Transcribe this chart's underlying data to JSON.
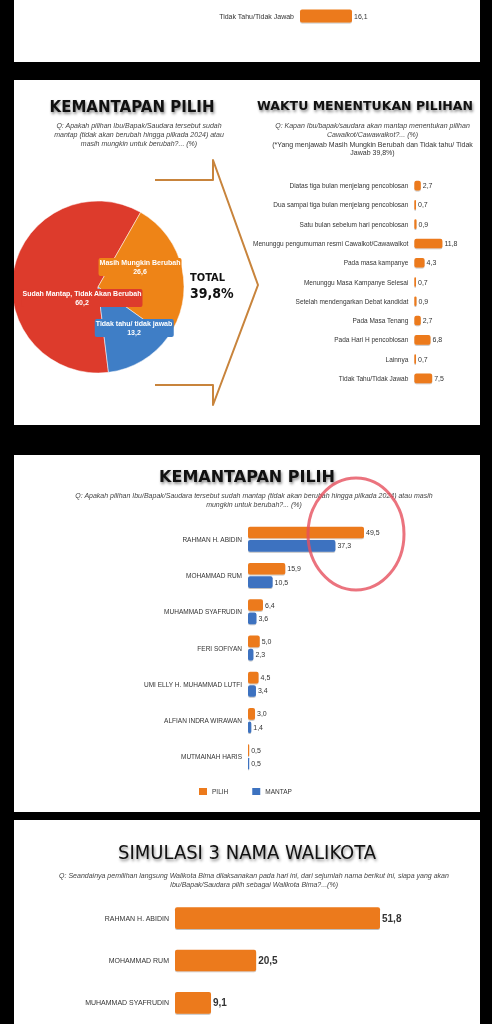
{
  "chart_data": [
    {
      "type": "bar",
      "orientation": "horizontal",
      "categories": [
        "Tidak Tahu/Tidak Jawab"
      ],
      "values": [
        16.1
      ],
      "color": "#ec7a1c",
      "value_labels": [
        "16,1"
      ]
    },
    {
      "type": "pie",
      "title": "KEMANTAPAN PILIH",
      "subtitle": "Q: Apakah pilihan Ibu/Bapak/Saudara tersebut sudah mantap (tidak akan berubah hingga pilkada 2024) atau masih mungkin untuk berubah?... (%)",
      "categories": [
        "Sudah Mantap, Tidak Akan Berubah",
        "Masih Mungkin Berubah",
        "Tidak tahu/ tidak jawab"
      ],
      "values": [
        60.2,
        26.6,
        13.2
      ],
      "colors": [
        "#dd3b2c",
        "#ee8417",
        "#3f7ec6"
      ],
      "value_labels": [
        "60,2",
        "26,6",
        "13,2"
      ],
      "annotations": [
        "TOTAL",
        "39,8%"
      ]
    },
    {
      "type": "bar",
      "orientation": "horizontal",
      "title": "WAKTU MENENTUKAN PILIHAN",
      "subtitle": "Q: Kapan Ibu/bapak/saudara akan mantap menentukan pilihan Cawalkot/Cawawalkot?... (%)",
      "annotations": [
        "(*Yang menjawab Masih Mungkin Berubah dan Tidak tahu/ Tidak Jawab 39,8%)"
      ],
      "categories": [
        "Diatas tiga bulan menjelang pencoblosan",
        "Dua sampai tiga bulan menjelang pencoblosan",
        "Satu bulan sebelum hari pencoblosan",
        "Menunggu pengumuman resmi Cawalkot/Cawawalkot",
        "Pada masa kampanye",
        "Menunggu Masa Kampanye Selesai",
        "Setelah mendengarkan Debat kandidat",
        "Pada Masa Tenang",
        "Pada Hari H pencoblosan",
        "Lainnya",
        "Tidak Tahu/Tidak Jawab"
      ],
      "values": [
        2.7,
        0.7,
        0.9,
        11.8,
        4.3,
        0.7,
        0.9,
        2.7,
        6.8,
        0.7,
        7.5
      ],
      "color": "#ec7a1c",
      "value_labels": [
        "2,7",
        "0,7",
        "0,9",
        "11,8",
        "4,3",
        "0,7",
        "0,9",
        "2,7",
        "6,8",
        "0,7",
        "7,5"
      ]
    },
    {
      "type": "bar",
      "orientation": "horizontal",
      "title": "KEMANTAPAN PILIH",
      "subtitle": "Q: Apakah pilihan Ibu/Bapak/Saudara tersebut sudah mantap (tidak akan berubah hingga pilkada 2024) atau masih mungkin untuk berubah?... (%)",
      "legend": "bottom",
      "categories": [
        "RAHMAN H. ABIDIN",
        "MOHAMMAD RUM",
        "MUHAMMAD SYAFRUDIN",
        "FERI SOFIYAN",
        "UMI ELLY H. MUHAMMAD LUTFI",
        "ALFIAN INDRA WIRAWAN",
        "MUTMAINAH HARIS"
      ],
      "series": [
        {
          "name": "PILIH",
          "color": "#ec7a1c",
          "values": [
            49.5,
            15.9,
            6.4,
            5.0,
            4.5,
            3.0,
            0.5
          ],
          "value_labels": [
            "49,5",
            "15,9",
            "6,4",
            "5,0",
            "4,5",
            "3,0",
            "0,5"
          ]
        },
        {
          "name": "MANTAP",
          "color": "#3c72c0",
          "values": [
            37.3,
            10.5,
            3.6,
            2.3,
            3.4,
            1.4,
            0.5
          ],
          "value_labels": [
            "37,3",
            "10,5",
            "3,6",
            "2,3",
            "3,4",
            "1,4",
            "0,5"
          ]
        }
      ]
    },
    {
      "type": "bar",
      "orientation": "horizontal",
      "title": "SIMULASI 3 NAMA WALIKOTA",
      "subtitle": "Q: Seandainya pemilihan langsung Walikota Bima dilaksanakan pada hari ini, dari sejumlah nama berikut ini, siapa yang akan Ibu/Bapak/Saudara pilih sebagai Walikota Bima?...(%)",
      "categories": [
        "RAHMAN H. ABIDIN",
        "MOHAMMAD RUM",
        "MUHAMMAD SYAFRUDIN"
      ],
      "values": [
        51.8,
        20.5,
        9.1
      ],
      "color": "#ec7a1c",
      "value_labels": [
        "51,8",
        "20,5",
        "9,1"
      ]
    }
  ]
}
